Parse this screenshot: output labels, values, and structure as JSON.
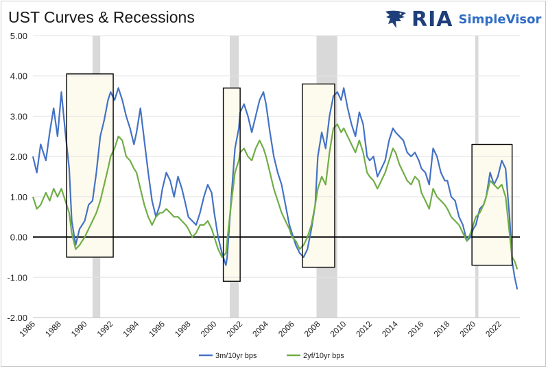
{
  "header": {
    "title": "UST Curves & Recessions",
    "logo_text": "RIA",
    "logo_subtext": "SimpleVisor",
    "logo_icon": "eagle-icon"
  },
  "colors": {
    "series_3m": "#4472c4",
    "series_2y": "#70ad47",
    "recession": "#d9d9d9",
    "box_fill": "#fdfaee",
    "zero_line": "#000000"
  },
  "chart_data": {
    "type": "line",
    "title": "UST Curves & Recessions",
    "xlabel": "",
    "ylabel": "",
    "xlim": [
      1986,
      2023.6
    ],
    "ylim": [
      -2.0,
      5.0
    ],
    "y_ticks": [
      "5.00",
      "4.00",
      "3.00",
      "2.00",
      "1.00",
      "0.00",
      "-1.00",
      "-2.00"
    ],
    "x_ticks": [
      "1986",
      "1988",
      "1990",
      "1992",
      "1994",
      "1996",
      "1998",
      "2000",
      "2002",
      "2004",
      "2006",
      "2008",
      "2010",
      "2012",
      "2014",
      "2016",
      "2018",
      "2020",
      "2022"
    ],
    "grid": "horizontal",
    "legend_position": "bottom",
    "recessions": [
      [
        1990.6,
        1991.2
      ],
      [
        2001.2,
        2001.9
      ],
      [
        2007.9,
        2009.5
      ],
      [
        2020.15,
        2020.4
      ]
    ],
    "highlight_boxes": [
      {
        "x": [
          1988.6,
          1992.2
        ],
        "y": [
          -0.5,
          4.05
        ]
      },
      {
        "x": [
          2000.7,
          2002.0
        ],
        "y": [
          -1.1,
          3.7
        ]
      },
      {
        "x": [
          2006.8,
          2009.3
        ],
        "y": [
          -0.75,
          3.8
        ]
      },
      {
        "x": [
          2019.9,
          2023.0
        ],
        "y": [
          -0.7,
          2.3
        ]
      }
    ],
    "series": [
      {
        "name": "3m/10yr bps",
        "x": [
          1986.0,
          1986.3,
          1986.6,
          1987.0,
          1987.3,
          1987.6,
          1987.9,
          1988.2,
          1988.5,
          1988.8,
          1989.0,
          1989.3,
          1989.6,
          1990.0,
          1990.3,
          1990.6,
          1990.9,
          1991.2,
          1991.5,
          1991.8,
          1992.0,
          1992.3,
          1992.6,
          1992.9,
          1993.2,
          1993.5,
          1993.8,
          1994.0,
          1994.3,
          1994.6,
          1994.9,
          1995.2,
          1995.5,
          1995.8,
          1996.0,
          1996.3,
          1996.6,
          1996.9,
          1997.2,
          1997.5,
          1997.8,
          1998.0,
          1998.3,
          1998.6,
          1998.9,
          1999.2,
          1999.5,
          1999.8,
          2000.0,
          2000.3,
          2000.6,
          2000.9,
          2001.0,
          2001.3,
          2001.6,
          2001.9,
          2002.0,
          2002.3,
          2002.6,
          2002.9,
          2003.2,
          2003.5,
          2003.8,
          2004.0,
          2004.3,
          2004.6,
          2004.9,
          2005.2,
          2005.5,
          2005.8,
          2006.0,
          2006.3,
          2006.6,
          2006.9,
          2007.2,
          2007.5,
          2007.8,
          2008.0,
          2008.3,
          2008.6,
          2008.9,
          2009.2,
          2009.5,
          2009.8,
          2010.0,
          2010.3,
          2010.6,
          2010.9,
          2011.2,
          2011.5,
          2011.8,
          2012.0,
          2012.3,
          2012.6,
          2012.9,
          2013.2,
          2013.5,
          2013.8,
          2014.0,
          2014.3,
          2014.6,
          2014.9,
          2015.2,
          2015.5,
          2015.8,
          2016.0,
          2016.3,
          2016.6,
          2016.9,
          2017.2,
          2017.5,
          2017.8,
          2018.0,
          2018.3,
          2018.6,
          2018.9,
          2019.2,
          2019.5,
          2019.8,
          2020.0,
          2020.2,
          2020.5,
          2020.8,
          2021.0,
          2021.3,
          2021.6,
          2021.9,
          2022.2,
          2022.5,
          2022.8,
          2023.0,
          2023.2,
          2023.4
        ],
        "values": [
          2.0,
          1.6,
          2.3,
          1.9,
          2.6,
          3.2,
          2.5,
          3.6,
          2.6,
          1.7,
          0.4,
          -0.2,
          0.2,
          0.4,
          0.8,
          0.9,
          1.6,
          2.5,
          2.9,
          3.4,
          3.6,
          3.4,
          3.7,
          3.4,
          3.0,
          2.7,
          2.3,
          2.6,
          3.2,
          2.4,
          1.6,
          0.9,
          0.5,
          0.8,
          1.2,
          1.6,
          1.4,
          1.0,
          1.5,
          1.2,
          0.8,
          0.5,
          0.4,
          0.3,
          0.6,
          1.0,
          1.3,
          1.1,
          0.6,
          0.0,
          -0.4,
          -0.7,
          -0.5,
          0.9,
          2.2,
          2.7,
          3.1,
          3.3,
          3.0,
          2.6,
          3.0,
          3.4,
          3.6,
          3.3,
          2.6,
          2.0,
          1.6,
          1.3,
          0.8,
          0.3,
          0.1,
          -0.2,
          -0.4,
          -0.5,
          -0.3,
          0.2,
          0.8,
          2.0,
          2.6,
          2.2,
          3.0,
          3.5,
          3.6,
          3.4,
          3.7,
          3.2,
          2.8,
          2.5,
          3.1,
          2.8,
          2.0,
          1.9,
          2.0,
          1.5,
          1.7,
          1.9,
          2.4,
          2.7,
          2.6,
          2.5,
          2.4,
          2.1,
          2.0,
          2.1,
          1.9,
          1.7,
          1.6,
          1.3,
          2.2,
          2.0,
          1.6,
          1.4,
          1.4,
          1.0,
          0.9,
          0.5,
          0.3,
          -0.1,
          0.0,
          0.2,
          0.3,
          0.7,
          0.8,
          1.0,
          1.6,
          1.3,
          1.5,
          1.9,
          1.7,
          0.5,
          -0.6,
          -1.0,
          -1.3
        ]
      },
      {
        "name": "2yf/10yr bps",
        "x": [
          1986.0,
          1986.3,
          1986.6,
          1987.0,
          1987.3,
          1987.6,
          1987.9,
          1988.2,
          1988.5,
          1988.8,
          1989.0,
          1989.3,
          1989.6,
          1990.0,
          1990.3,
          1990.6,
          1990.9,
          1991.2,
          1991.5,
          1991.8,
          1992.0,
          1992.3,
          1992.6,
          1992.9,
          1993.2,
          1993.5,
          1993.8,
          1994.0,
          1994.3,
          1994.6,
          1994.9,
          1995.2,
          1995.5,
          1995.8,
          1996.0,
          1996.3,
          1996.6,
          1996.9,
          1997.2,
          1997.5,
          1997.8,
          1998.0,
          1998.3,
          1998.6,
          1998.9,
          1999.2,
          1999.5,
          1999.8,
          2000.0,
          2000.3,
          2000.6,
          2000.9,
          2001.0,
          2001.3,
          2001.6,
          2001.9,
          2002.0,
          2002.3,
          2002.6,
          2002.9,
          2003.2,
          2003.5,
          2003.8,
          2004.0,
          2004.3,
          2004.6,
          2004.9,
          2005.2,
          2005.5,
          2005.8,
          2006.0,
          2006.3,
          2006.6,
          2006.9,
          2007.2,
          2007.5,
          2007.8,
          2008.0,
          2008.3,
          2008.6,
          2008.9,
          2009.2,
          2009.5,
          2009.8,
          2010.0,
          2010.3,
          2010.6,
          2010.9,
          2011.2,
          2011.5,
          2011.8,
          2012.0,
          2012.3,
          2012.6,
          2012.9,
          2013.2,
          2013.5,
          2013.8,
          2014.0,
          2014.3,
          2014.6,
          2014.9,
          2015.2,
          2015.5,
          2015.8,
          2016.0,
          2016.3,
          2016.6,
          2016.9,
          2017.2,
          2017.5,
          2017.8,
          2018.0,
          2018.3,
          2018.6,
          2018.9,
          2019.2,
          2019.5,
          2019.8,
          2020.0,
          2020.2,
          2020.5,
          2020.8,
          2021.0,
          2021.3,
          2021.6,
          2021.9,
          2022.2,
          2022.5,
          2022.8,
          2023.0,
          2023.2,
          2023.4
        ],
        "values": [
          1.0,
          0.7,
          0.8,
          1.1,
          0.9,
          1.2,
          1.0,
          1.2,
          0.9,
          0.6,
          0.1,
          -0.3,
          -0.2,
          0.0,
          0.2,
          0.4,
          0.6,
          0.9,
          1.3,
          1.7,
          2.0,
          2.2,
          2.5,
          2.4,
          2.0,
          1.9,
          1.7,
          1.6,
          1.2,
          0.8,
          0.5,
          0.3,
          0.5,
          0.6,
          0.6,
          0.7,
          0.6,
          0.5,
          0.5,
          0.4,
          0.3,
          0.2,
          0.0,
          0.1,
          0.3,
          0.3,
          0.4,
          0.2,
          0.0,
          -0.3,
          -0.5,
          -0.4,
          -0.1,
          0.8,
          1.6,
          1.9,
          2.1,
          2.2,
          2.0,
          1.9,
          2.2,
          2.4,
          2.2,
          2.0,
          1.6,
          1.2,
          0.9,
          0.6,
          0.4,
          0.2,
          0.0,
          -0.1,
          -0.3,
          -0.2,
          0.0,
          0.3,
          0.8,
          1.2,
          1.5,
          1.3,
          2.1,
          2.7,
          2.8,
          2.6,
          2.7,
          2.5,
          2.3,
          2.1,
          2.4,
          2.1,
          1.6,
          1.5,
          1.4,
          1.2,
          1.4,
          1.6,
          1.9,
          2.2,
          2.1,
          1.8,
          1.6,
          1.4,
          1.3,
          1.5,
          1.4,
          1.1,
          0.9,
          0.7,
          1.2,
          1.0,
          0.9,
          0.8,
          0.7,
          0.5,
          0.4,
          0.3,
          0.1,
          -0.1,
          0.1,
          0.3,
          0.5,
          0.6,
          0.8,
          1.0,
          1.4,
          1.3,
          1.2,
          1.3,
          1.0,
          0.1,
          -0.5,
          -0.6,
          -0.8
        ]
      }
    ]
  }
}
